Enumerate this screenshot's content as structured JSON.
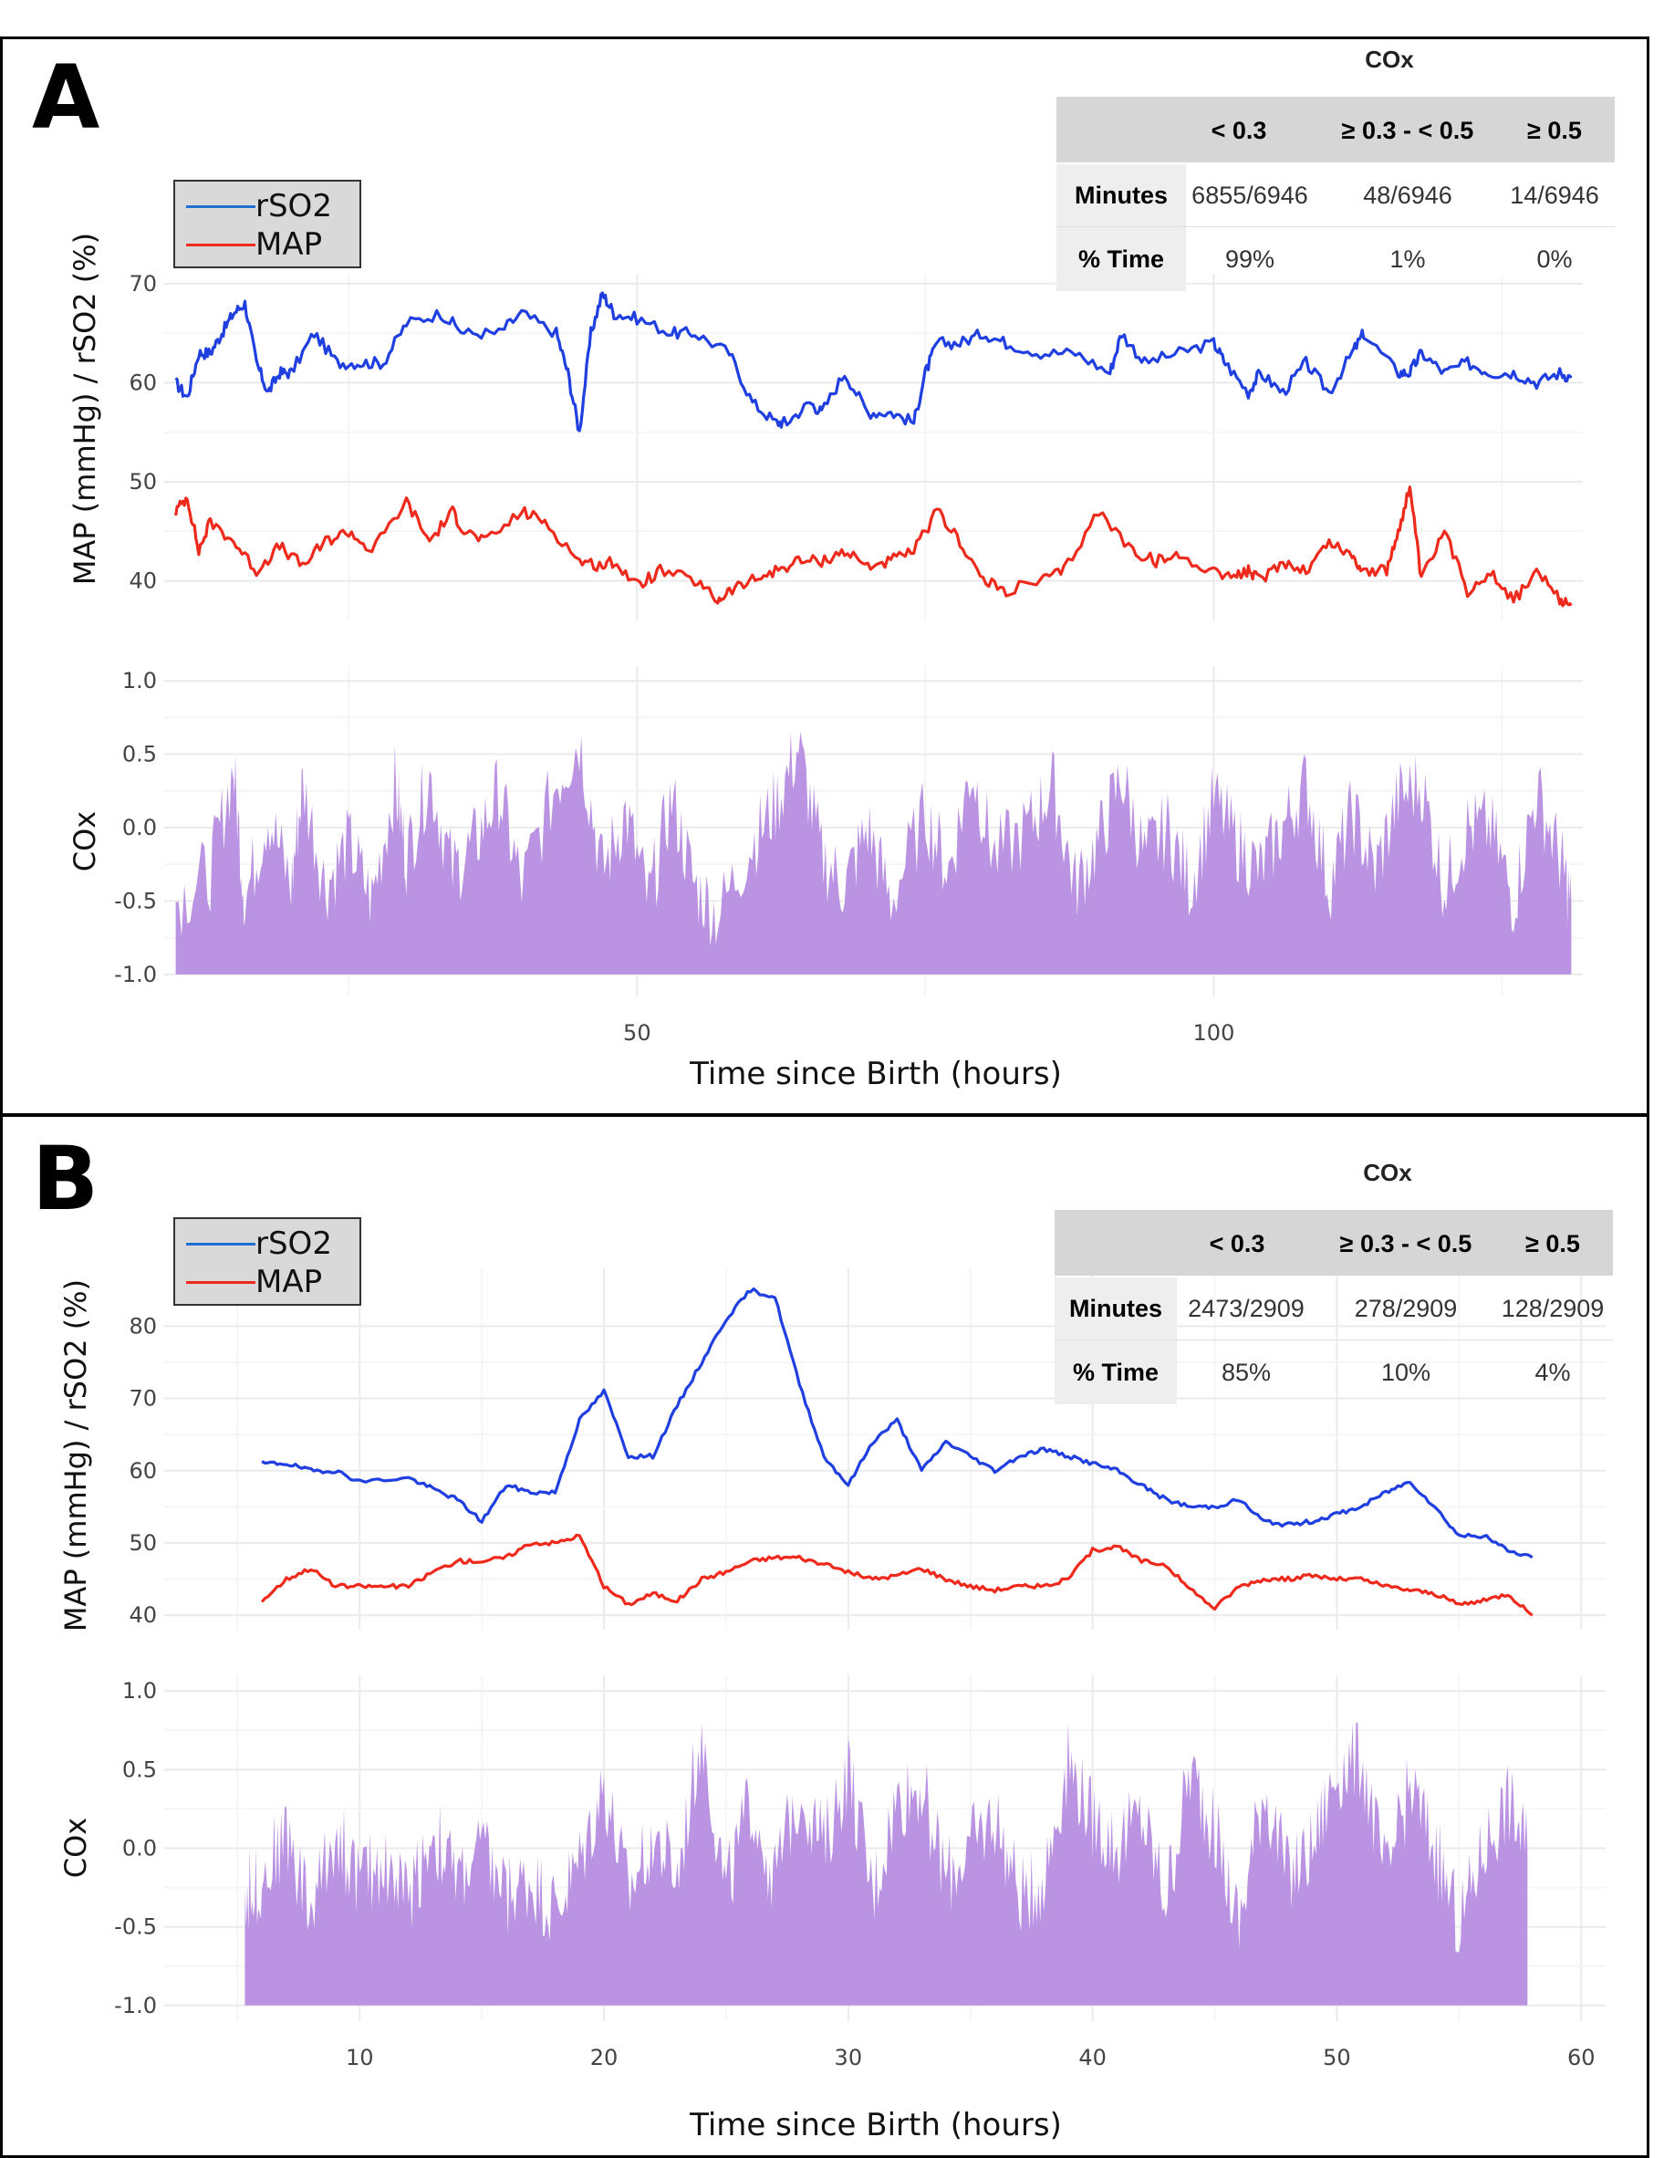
{
  "panels": [
    {
      "letter": "A",
      "table": {
        "title": "COx",
        "columns": [
          "< 0.3",
          "≥ 0.3 - < 0.5",
          "≥ 0.5"
        ],
        "rows": [
          {
            "label": "Minutes",
            "values": [
              "6855/6946",
              "48/6946",
              "14/6946"
            ]
          },
          {
            "label": "% Time",
            "values": [
              "99%",
              "1%",
              "0%"
            ]
          }
        ]
      },
      "legend": [
        {
          "name": "rSO2",
          "color": "#1f3fe0"
        },
        {
          "name": "MAP",
          "color": "#ee2a1c"
        }
      ]
    },
    {
      "letter": "B",
      "table": {
        "title": "COx",
        "columns": [
          "< 0.3",
          "≥ 0.3 - < 0.5",
          "≥ 0.5"
        ],
        "rows": [
          {
            "label": "Minutes",
            "values": [
              "2473/2909",
              "278/2909",
              "128/2909"
            ]
          },
          {
            "label": "% Time",
            "values": [
              "85%",
              "10%",
              "4%"
            ]
          }
        ]
      },
      "legend": [
        {
          "name": "rSO2",
          "color": "#1f3fe0"
        },
        {
          "name": "MAP",
          "color": "#ee2a1c"
        }
      ]
    }
  ],
  "colors": {
    "rso2": "#1f3fe0",
    "map": "#ee2a1c",
    "cox_fill": "#bb93e3"
  },
  "chart_data": [
    {
      "type": "line",
      "panel": "A-top",
      "ylabel": "MAP (mmHg) / rSO2 (%)",
      "xlim": [
        9,
        132
      ],
      "ylim": [
        36,
        71
      ],
      "yticks": [
        40,
        50,
        60,
        70
      ],
      "series": [
        {
          "name": "rSO2",
          "color": "#1f3fe0",
          "x": [
            10,
            11,
            12,
            13,
            14,
            15,
            16,
            17,
            18,
            19,
            20,
            22,
            24,
            26,
            28,
            30,
            33,
            35,
            38,
            40,
            43,
            44,
            45,
            46,
            47,
            48,
            50,
            53,
            55,
            58,
            60,
            62,
            63,
            65,
            66,
            68,
            70,
            72,
            74,
            75,
            76,
            78,
            80,
            82,
            85,
            88,
            91,
            92,
            94,
            97,
            100,
            101,
            103,
            104,
            106,
            108,
            110,
            112,
            113,
            116,
            117,
            118,
            120,
            122,
            124,
            126,
            128,
            130,
            131
          ],
          "y": [
            60,
            58.5,
            63,
            63,
            65,
            67,
            68,
            62,
            59,
            61,
            61,
            65,
            62,
            62,
            62,
            66,
            67,
            65,
            65,
            67,
            65,
            61,
            55,
            65,
            69,
            67,
            66.5,
            65,
            65,
            63,
            58,
            56,
            56,
            58,
            57,
            61,
            57,
            57,
            56,
            61,
            64,
            64,
            65,
            64,
            63,
            63,
            61,
            65,
            62,
            63,
            64,
            62,
            59,
            61,
            59,
            62,
            59,
            63,
            65,
            61,
            61,
            63,
            61,
            62,
            61,
            61,
            60,
            61,
            60.5
          ]
        },
        {
          "name": "MAP",
          "color": "#ee2a1c",
          "x": [
            10,
            11,
            12,
            13,
            15,
            17,
            19,
            21,
            23,
            25,
            27,
            30,
            32,
            34,
            35,
            37,
            40,
            42,
            45,
            47,
            48,
            50,
            52,
            55,
            57,
            58,
            60,
            62,
            64,
            66,
            68,
            70,
            72,
            74,
            76,
            78,
            80,
            82,
            85,
            87,
            90,
            93,
            95,
            97,
            100,
            102,
            103,
            104,
            106,
            108,
            110,
            112,
            113,
            115,
            116,
            117,
            118,
            120,
            122,
            124,
            126,
            128,
            130,
            131
          ],
          "y": [
            47,
            48.5,
            43,
            46,
            44,
            41,
            43.5,
            41.5,
            44,
            45,
            43,
            48,
            44,
            47,
            45,
            44,
            47,
            46,
            42,
            41.5,
            42,
            39.5,
            41,
            40,
            38,
            39,
            40,
            41,
            42,
            42,
            43,
            41.5,
            42,
            43,
            47,
            44,
            40,
            39,
            40,
            41,
            47,
            43,
            42,
            42.5,
            41,
            40.5,
            41,
            40,
            42,
            41,
            44,
            42.5,
            41,
            41,
            45,
            49.5,
            40,
            45,
            39,
            41,
            38,
            41,
            38,
            37.5
          ]
        }
      ]
    },
    {
      "type": "area",
      "panel": "A-bottom",
      "xlabel": "Time since Birth (hours)",
      "ylabel": "COx",
      "xlim": [
        9,
        132
      ],
      "ylim": [
        -1.0,
        1.0
      ],
      "yticks": [
        -1.0,
        -0.5,
        0.0,
        0.5,
        1.0
      ],
      "xticks": [
        50,
        100
      ],
      "series": [
        {
          "name": "COx",
          "color": "#bb93e3",
          "x": [
            10,
            13,
            15,
            16,
            18,
            20,
            21,
            23,
            25,
            27,
            29,
            30,
            32,
            34,
            36,
            38,
            40,
            43,
            45,
            47,
            49,
            51,
            53,
            55,
            57,
            60,
            62,
            64,
            66,
            68,
            70,
            72,
            75,
            77,
            79,
            81,
            84,
            86,
            88,
            90,
            92,
            94,
            96,
            98,
            100,
            102,
            104,
            106,
            108,
            110,
            112,
            114,
            116,
            118,
            120,
            122,
            124,
            126,
            128,
            130,
            131
          ],
          "y": [
            -0.5,
            -0.3,
            0.4,
            -0.5,
            0.1,
            -0.4,
            0.3,
            -0.4,
            -0.1,
            -0.5,
            0.3,
            -0.2,
            0.35,
            -0.3,
            -0.1,
            0.25,
            -0.4,
            0.3,
            0.6,
            -0.3,
            0.1,
            -0.5,
            0.2,
            -0.4,
            -0.6,
            -0.1,
            0.15,
            0.55,
            -0.2,
            -0.4,
            0.0,
            -0.5,
            0.1,
            -0.3,
            0.4,
            -0.2,
            0.0,
            0.3,
            -0.4,
            -0.1,
            0.35,
            -0.2,
            0.0,
            -0.4,
            0.2,
            -0.1,
            -0.3,
            0.0,
            0.3,
            -0.4,
            0.1,
            -0.3,
            0.2,
            0.3,
            -0.4,
            0.0,
            0.0,
            -0.5,
            0.25,
            -0.2,
            -0.5
          ]
        }
      ]
    },
    {
      "type": "line",
      "panel": "B-top",
      "ylabel": "MAP (mmHg) / rSO2 (%)",
      "xlim": [
        2,
        61
      ],
      "ylim": [
        38,
        88
      ],
      "yticks": [
        40,
        50,
        60,
        70,
        80
      ],
      "series": [
        {
          "name": "rSO2",
          "color": "#1f3fe0",
          "x": [
            6,
            7,
            8,
            9,
            10,
            12,
            13,
            14,
            15,
            16,
            17,
            18,
            19,
            20,
            21,
            22,
            23,
            24,
            25,
            26,
            27,
            28,
            29,
            30,
            31,
            32,
            33,
            34,
            35,
            36,
            37,
            38,
            39,
            40,
            41,
            42,
            43,
            44,
            45,
            46,
            47,
            48,
            49,
            50,
            51,
            52,
            53,
            54,
            55,
            56,
            57,
            58
          ],
          "y": [
            61,
            61,
            60,
            60,
            58.5,
            59,
            57.5,
            56,
            53,
            58,
            57,
            57,
            67,
            71,
            62,
            62,
            69,
            75,
            81,
            85,
            84,
            72,
            62,
            58,
            64,
            67,
            60,
            64,
            62,
            60,
            62,
            63,
            62,
            61,
            60,
            58,
            56,
            55,
            55,
            56,
            53,
            52.5,
            53,
            54,
            55,
            57,
            58.5,
            55,
            51,
            51,
            49,
            48
          ]
        },
        {
          "name": "MAP",
          "color": "#ee2a1c",
          "x": [
            6,
            7,
            8,
            9,
            10,
            11,
            12,
            13,
            14,
            15,
            16,
            17,
            18,
            19,
            20,
            21,
            22,
            23,
            24,
            25,
            26,
            27,
            28,
            29,
            30,
            31,
            32,
            33,
            34,
            35,
            36,
            37,
            38,
            39,
            40,
            41,
            42,
            43,
            44,
            45,
            46,
            47,
            48,
            49,
            50,
            51,
            52,
            53,
            54,
            55,
            56,
            57,
            58
          ],
          "y": [
            42,
            45,
            46.5,
            44,
            44,
            44,
            44,
            46,
            47.5,
            47.5,
            48,
            50,
            50,
            51,
            44,
            41.5,
            43,
            42,
            45,
            46,
            47.5,
            48,
            48,
            47,
            46,
            45,
            45.5,
            46.5,
            45,
            44,
            43.5,
            44,
            44,
            45,
            49,
            49.5,
            47.5,
            47,
            43.5,
            41,
            44,
            45,
            45,
            45.5,
            45,
            45,
            44,
            43.5,
            43,
            41.5,
            42,
            43,
            40
          ]
        }
      ]
    },
    {
      "type": "area",
      "panel": "B-bottom",
      "xlabel": "Time since Birth (hours)",
      "ylabel": "COx",
      "xlim": [
        2,
        61
      ],
      "ylim": [
        -1.0,
        1.0
      ],
      "yticks": [
        -1.0,
        -0.5,
        0.0,
        0.5,
        1.0
      ],
      "xticks": [
        10,
        20,
        30,
        40,
        50,
        60
      ],
      "series": [
        {
          "name": "COx",
          "color": "#bb93e3",
          "x": [
            5.3,
            6,
            7,
            8,
            9,
            10,
            11,
            12,
            13,
            14,
            15,
            16,
            17,
            18,
            19,
            20,
            21,
            22,
            23,
            24,
            25,
            26,
            27,
            28,
            29,
            30,
            31,
            32,
            33,
            34,
            35,
            36,
            37,
            38,
            39,
            40,
            41,
            42,
            43,
            44,
            45,
            46,
            47,
            48,
            49,
            50,
            51,
            52,
            53,
            54,
            55,
            56,
            57,
            57.8
          ],
          "y": [
            -0.3,
            -0.2,
            0.1,
            -0.4,
            0.1,
            -0.2,
            -0.1,
            -0.3,
            0.1,
            -0.2,
            0.0,
            -0.3,
            -0.2,
            -0.4,
            -0.1,
            0.4,
            -0.3,
            0.1,
            -0.2,
            0.75,
            -0.3,
            0.3,
            -0.2,
            0.4,
            0.0,
            0.5,
            -0.3,
            0.3,
            0.4,
            -0.2,
            0.0,
            0.2,
            -0.3,
            -0.2,
            0.55,
            0.2,
            0.0,
            0.2,
            -0.3,
            0.5,
            0.1,
            -0.5,
            0.4,
            -0.2,
            0.0,
            0.5,
            0.6,
            -0.2,
            0.4,
            0.0,
            -0.5,
            0.0,
            0.3,
            0.0
          ]
        }
      ]
    }
  ]
}
